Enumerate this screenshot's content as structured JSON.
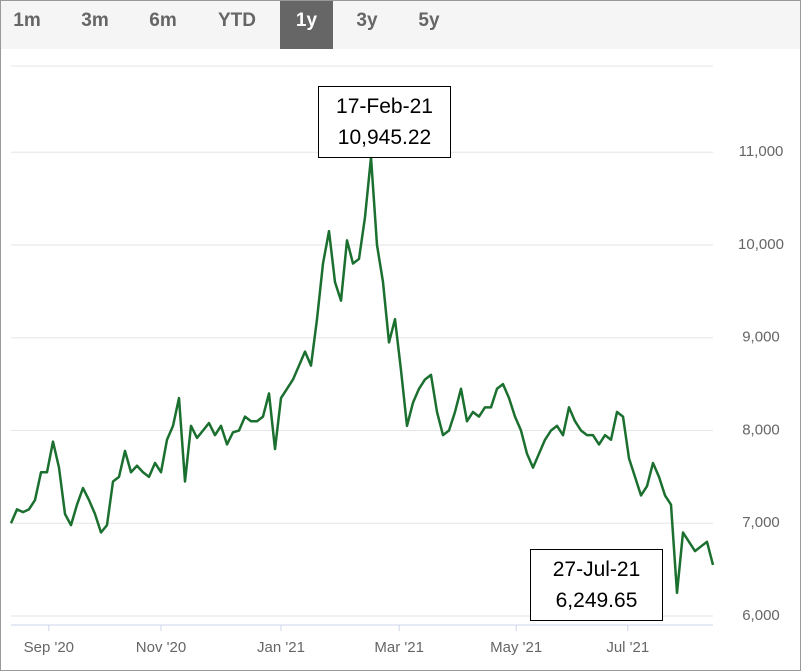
{
  "tabs": [
    "1m",
    "3m",
    "6m",
    "YTD",
    "1y",
    "3y",
    "5y"
  ],
  "active_tab": 4,
  "chart_data": {
    "type": "line",
    "series": [
      {
        "color": "#1b6f2f",
        "values": [
          7000,
          7150,
          7120,
          7150,
          7250,
          7550,
          7550,
          7880,
          7600,
          7100,
          6980,
          7200,
          7380,
          7250,
          7100,
          6900,
          6980,
          7450,
          7500,
          7780,
          7550,
          7620,
          7550,
          7500,
          7650,
          7550,
          7900,
          8050,
          8350,
          7450,
          8050,
          7920,
          8000,
          8080,
          7950,
          8050,
          7850,
          7980,
          8000,
          8150,
          8100,
          8100,
          8150,
          8400,
          7800,
          8350,
          8450,
          8550,
          8700,
          8850,
          8700,
          9200,
          9800,
          10150,
          9600,
          9400,
          10050,
          9800,
          9850,
          10300,
          10945.22,
          10000,
          9600,
          8950,
          9200,
          8650,
          8050,
          8300,
          8450,
          8550,
          8600,
          8200,
          7950,
          8000,
          8200,
          8450,
          8100,
          8200,
          8150,
          8250,
          8250,
          8450,
          8500,
          8350,
          8150,
          8000,
          7750,
          7600,
          7750,
          7900,
          8000,
          8050,
          7950,
          8250,
          8100,
          8000,
          7950,
          7950,
          7850,
          7950,
          7900,
          8200,
          8150,
          7700,
          7500,
          7300,
          7400,
          7650,
          7500,
          7300,
          7200,
          6249.65,
          6900,
          6800,
          6700,
          6750,
          6800,
          6550
        ]
      }
    ],
    "xlim": [
      0,
      117
    ],
    "xticks": [
      {
        "value": 6.3,
        "label": "Sep '20"
      },
      {
        "value": 25,
        "label": "Nov '20"
      },
      {
        "value": 45,
        "label": "Jan '21"
      },
      {
        "value": 64.7,
        "label": "Mar '21"
      },
      {
        "value": 84.2,
        "label": "May '21"
      },
      {
        "value": 102.8,
        "label": "Jul '21"
      }
    ],
    "ylim": [
      6000,
      11930
    ],
    "yticks": [
      {
        "value": 6000,
        "label": "6,000"
      },
      {
        "value": 7000,
        "label": "7,000"
      },
      {
        "value": 8000,
        "label": "8,000"
      },
      {
        "value": 9000,
        "label": "9,000"
      },
      {
        "value": 10000,
        "label": "10,000"
      },
      {
        "value": 11000,
        "label": "11,000"
      }
    ],
    "grid": true,
    "annotations": [
      {
        "date": "17-Feb-21",
        "value": "10,945.22"
      },
      {
        "date": "27-Jul-21",
        "value": "6,249.65"
      }
    ]
  }
}
